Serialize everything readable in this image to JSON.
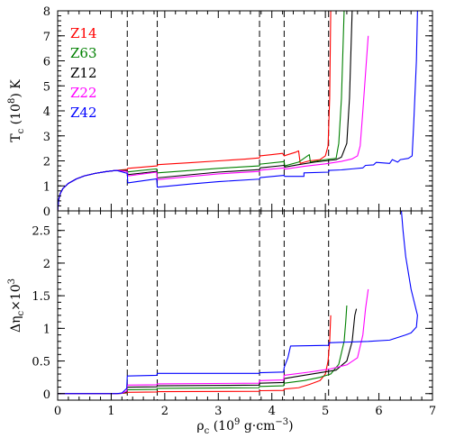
{
  "chart_data": [
    {
      "panel": "top",
      "type": "line",
      "ylabel": "T_c (10^8) K",
      "ylabel_parts": {
        "symbol": "T",
        "sub": "c",
        "units": " (10",
        "exp": "8",
        "tail": ") K"
      },
      "xlim": [
        0,
        7
      ],
      "ylim": [
        0,
        8
      ],
      "yticks": [
        0,
        1,
        2,
        3,
        4,
        5,
        6,
        7,
        8
      ],
      "xticks": [
        0,
        1,
        2,
        3,
        4,
        5,
        6,
        7
      ],
      "vlines": [
        1.3,
        1.86,
        3.77,
        4.23,
        5.06
      ],
      "legend": {
        "placement": "top-left"
      },
      "series": [
        {
          "name": "Z14",
          "color": "#ff0000",
          "x": [
            0,
            0.02,
            0.05,
            0.1,
            0.2,
            0.35,
            0.5,
            0.7,
            0.9,
            1.1,
            1.3,
            1.31,
            1.86,
            1.87,
            2.5,
            3.0,
            3.5,
            3.77,
            3.78,
            4.0,
            4.2,
            4.23,
            4.3,
            4.45,
            4.5,
            4.53,
            4.7,
            4.9,
            5.0,
            5.05,
            5.08,
            5.1
          ],
          "y": [
            0,
            0.45,
            0.7,
            0.9,
            1.1,
            1.28,
            1.4,
            1.5,
            1.57,
            1.62,
            1.66,
            1.7,
            1.8,
            1.85,
            1.93,
            2.0,
            2.07,
            2.12,
            2.2,
            2.25,
            2.3,
            2.2,
            2.25,
            2.35,
            2.4,
            1.9,
            2.0,
            2.05,
            2.2,
            2.6,
            4.5,
            8.0
          ]
        },
        {
          "name": "Z63",
          "color": "#008000",
          "x": [
            0,
            0.02,
            0.05,
            0.1,
            0.2,
            0.35,
            0.5,
            0.7,
            0.9,
            1.1,
            1.3,
            1.31,
            1.85,
            1.86,
            2.5,
            3.0,
            3.77,
            3.78,
            4.23,
            4.24,
            4.5,
            4.7,
            4.72,
            5.0,
            5.2,
            5.25,
            5.3,
            5.35
          ],
          "y": [
            0,
            0.45,
            0.7,
            0.9,
            1.1,
            1.28,
            1.4,
            1.5,
            1.57,
            1.62,
            1.62,
            1.56,
            1.68,
            1.52,
            1.62,
            1.7,
            1.8,
            1.87,
            1.97,
            1.8,
            1.95,
            2.25,
            1.95,
            2.05,
            2.1,
            2.7,
            4.5,
            8.0
          ]
        },
        {
          "name": "Z12",
          "color": "#000000",
          "x": [
            0,
            0.02,
            0.05,
            0.1,
            0.2,
            0.35,
            0.5,
            0.7,
            0.9,
            1.1,
            1.3,
            1.31,
            1.85,
            1.86,
            2.5,
            3.0,
            3.77,
            3.78,
            4.23,
            4.24,
            4.5,
            4.8,
            5.0,
            5.2,
            5.3,
            5.4,
            5.45,
            5.5
          ],
          "y": [
            0,
            0.45,
            0.7,
            0.9,
            1.1,
            1.28,
            1.4,
            1.5,
            1.57,
            1.62,
            1.6,
            1.45,
            1.58,
            1.32,
            1.45,
            1.55,
            1.65,
            1.72,
            1.82,
            1.75,
            1.85,
            1.95,
            2.0,
            2.05,
            2.15,
            2.7,
            4.5,
            8.0
          ]
        },
        {
          "name": "Z22",
          "color": "#ff00ff",
          "x": [
            0,
            0.02,
            0.05,
            0.1,
            0.2,
            0.35,
            0.5,
            0.7,
            0.9,
            1.1,
            1.3,
            1.31,
            1.85,
            1.86,
            2.5,
            3.0,
            3.77,
            3.78,
            4.23,
            4.24,
            4.6,
            5.0,
            5.3,
            5.5,
            5.6,
            5.65,
            5.7,
            5.75,
            5.8
          ],
          "y": [
            0,
            0.45,
            0.7,
            0.9,
            1.1,
            1.28,
            1.4,
            1.5,
            1.57,
            1.62,
            1.58,
            1.4,
            1.55,
            1.25,
            1.38,
            1.48,
            1.58,
            1.63,
            1.72,
            1.67,
            1.78,
            1.88,
            1.98,
            2.08,
            2.2,
            2.6,
            4.0,
            5.5,
            7.0
          ]
        },
        {
          "name": "Z42",
          "color": "#0000ff",
          "x": [
            0,
            0.02,
            0.05,
            0.1,
            0.2,
            0.35,
            0.5,
            0.7,
            0.9,
            1.1,
            1.3,
            1.31,
            1.85,
            1.86,
            2.5,
            3.0,
            3.77,
            3.78,
            4.23,
            4.24,
            4.6,
            4.6,
            5.06,
            5.07,
            5.3,
            5.5,
            5.7,
            5.75,
            5.9,
            5.95,
            6.2,
            6.25,
            6.35,
            6.4,
            6.55,
            6.62,
            6.65,
            6.7,
            6.72
          ],
          "y": [
            0,
            0.45,
            0.7,
            0.9,
            1.1,
            1.28,
            1.4,
            1.5,
            1.57,
            1.62,
            1.5,
            1.12,
            1.28,
            0.95,
            1.08,
            1.17,
            1.27,
            1.33,
            1.42,
            1.38,
            1.38,
            1.52,
            1.55,
            1.62,
            1.64,
            1.68,
            1.72,
            1.82,
            1.84,
            1.94,
            1.9,
            2.05,
            1.95,
            2.05,
            2.1,
            2.2,
            3.5,
            6.0,
            8.0
          ]
        }
      ]
    },
    {
      "panel": "bottom",
      "type": "line",
      "xlabel": "ρ_c (10^9 g·cm^-3)",
      "xlabel_parts": {
        "symbol": "ρ",
        "sub": "c",
        "units": " (10",
        "exp": "9",
        "tail1": " g·cm",
        "exp2": "−3",
        "tail2": ")"
      },
      "ylabel": "Δη_c ×10^3",
      "ylabel_parts": {
        "symbol": "Δη",
        "sub": "c",
        "units": "×10",
        "exp": "3"
      },
      "xlim": [
        0,
        7
      ],
      "ylim": [
        -0.1,
        2.8
      ],
      "yticks": [
        0,
        0.5,
        1,
        1.5,
        2,
        2.5
      ],
      "ytick_labels": [
        "0",
        "0.5",
        "1",
        "1.5",
        "2",
        "2.5"
      ],
      "xticks": [
        0,
        1,
        2,
        3,
        4,
        5,
        6,
        7
      ],
      "xtick_labels": [
        "0",
        "1",
        "2",
        "3",
        "4",
        "5",
        "6",
        "7"
      ],
      "vlines": [
        1.3,
        1.86,
        3.77,
        4.23,
        5.06
      ],
      "series": [
        {
          "name": "Z14",
          "color": "#ff0000",
          "x": [
            0,
            1.1,
            1.2,
            1.29,
            1.3,
            1.85,
            1.86,
            3.76,
            3.77,
            4.22,
            4.23,
            4.5,
            4.7,
            4.9,
            5.0,
            5.05,
            5.08,
            5.1
          ],
          "y": [
            0,
            0,
            0.005,
            0.01,
            0.02,
            0.025,
            0.03,
            0.035,
            0.045,
            0.05,
            0.07,
            0.09,
            0.14,
            0.2,
            0.3,
            0.5,
            0.8,
            1.2
          ]
        },
        {
          "name": "Z63",
          "color": "#008000",
          "x": [
            0,
            1.1,
            1.2,
            1.29,
            1.3,
            1.85,
            1.86,
            3.76,
            3.77,
            4.22,
            4.23,
            4.6,
            4.9,
            5.1,
            5.25,
            5.35,
            5.38,
            5.4
          ],
          "y": [
            0,
            0,
            0.005,
            0.02,
            0.06,
            0.065,
            0.08,
            0.09,
            0.11,
            0.12,
            0.16,
            0.2,
            0.25,
            0.3,
            0.45,
            0.8,
            1.1,
            1.35
          ]
        },
        {
          "name": "Z12",
          "color": "#000000",
          "x": [
            0,
            1.1,
            1.2,
            1.29,
            1.3,
            1.85,
            1.86,
            3.76,
            3.77,
            4.22,
            4.23,
            4.6,
            4.9,
            5.2,
            5.4,
            5.5,
            5.55,
            5.58
          ],
          "y": [
            0,
            0,
            0.005,
            0.03,
            0.1,
            0.105,
            0.12,
            0.13,
            0.16,
            0.17,
            0.23,
            0.28,
            0.32,
            0.36,
            0.5,
            0.8,
            1.2,
            1.3
          ]
        },
        {
          "name": "Z22",
          "color": "#ff00ff",
          "x": [
            0,
            1.1,
            1.2,
            1.29,
            1.3,
            1.85,
            1.86,
            3.76,
            3.77,
            4.22,
            4.23,
            4.7,
            5.1,
            5.4,
            5.6,
            5.7,
            5.75,
            5.8
          ],
          "y": [
            0,
            0,
            0.005,
            0.04,
            0.13,
            0.135,
            0.15,
            0.16,
            0.2,
            0.21,
            0.28,
            0.33,
            0.38,
            0.44,
            0.55,
            0.9,
            1.3,
            1.6
          ]
        },
        {
          "name": "Z42",
          "color": "#0000ff",
          "x": [
            0,
            1.1,
            1.2,
            1.29,
            1.3,
            1.85,
            1.86,
            3.76,
            3.77,
            4.22,
            4.23,
            4.3,
            4.35,
            5.06,
            5.07,
            5.8,
            6.2,
            6.5,
            6.6,
            6.7,
            6.72,
            6.6,
            6.5,
            6.45,
            6.42
          ],
          "y": [
            0,
            0,
            0.01,
            0.08,
            0.27,
            0.28,
            0.31,
            0.31,
            0.32,
            0.33,
            0.4,
            0.55,
            0.73,
            0.74,
            0.78,
            0.8,
            0.82,
            0.9,
            0.93,
            1.02,
            1.2,
            1.6,
            2.1,
            2.5,
            2.8
          ]
        }
      ]
    }
  ]
}
